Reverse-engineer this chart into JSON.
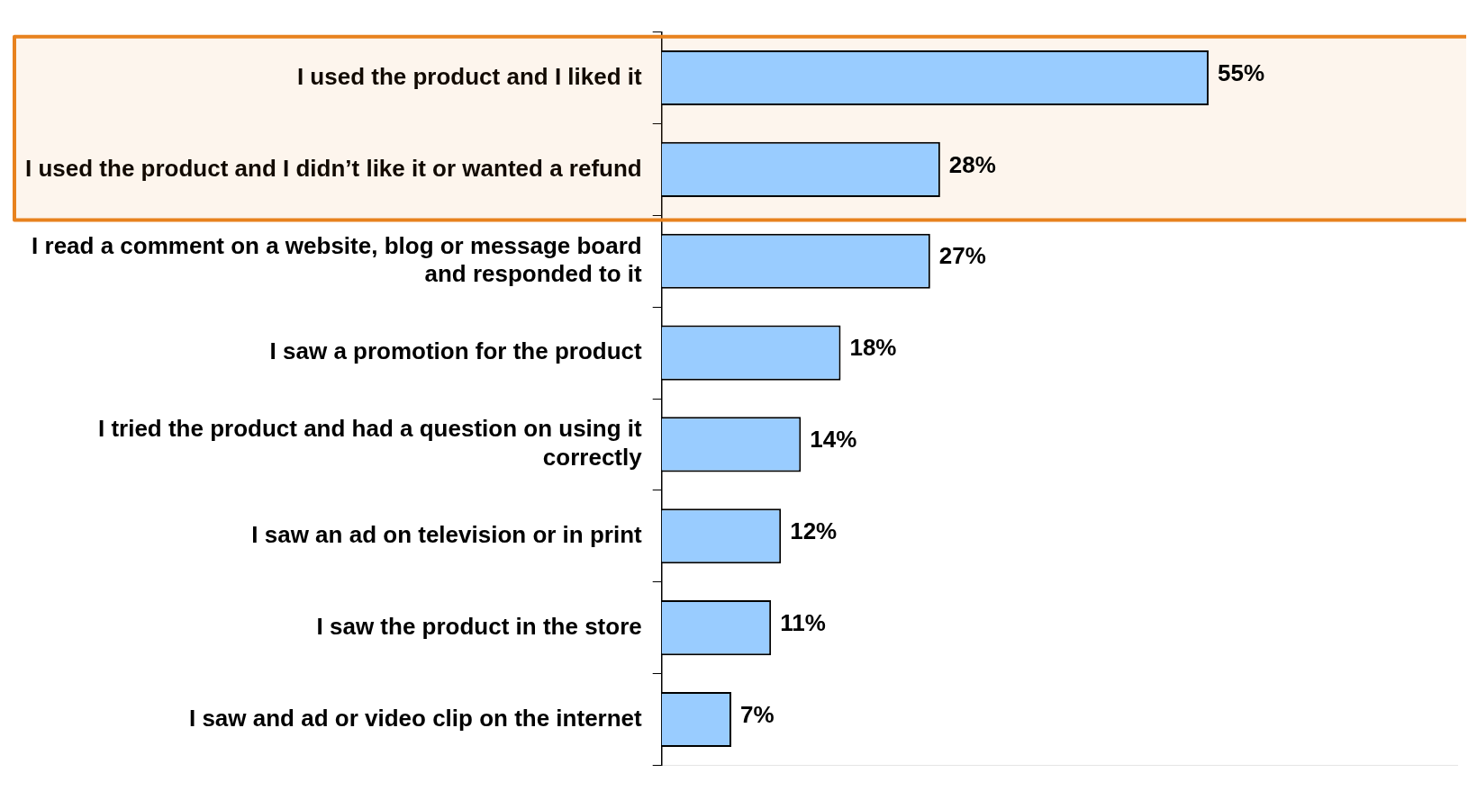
{
  "chart_data": {
    "type": "bar",
    "orientation": "horizontal",
    "relative": false,
    "categories": [
      "I used the product and I liked it",
      "I used the product and I didn’t like it or wanted a refund",
      "I read a comment on a website, blog or message board and responded to it",
      "I saw a promotion for the product",
      "I tried the product and had a question on using it correctly",
      "I saw an ad on television or in print",
      "I saw the product in the store",
      "I saw and ad or video clip on the internet"
    ],
    "values": [
      55,
      28,
      27,
      18,
      14,
      12,
      11,
      7
    ],
    "value_labels": [
      "55%",
      "28%",
      "27%",
      "18%",
      "14%",
      "12%",
      "11%",
      "7%"
    ],
    "color": "#99ccff",
    "legend": false,
    "grid": false,
    "bands": [
      {
        "axis": "y",
        "from": "I used the product and I liked it",
        "to": "I used the product and I didn’t like it or wanted a refund",
        "color": "#e8821e"
      }
    ]
  }
}
